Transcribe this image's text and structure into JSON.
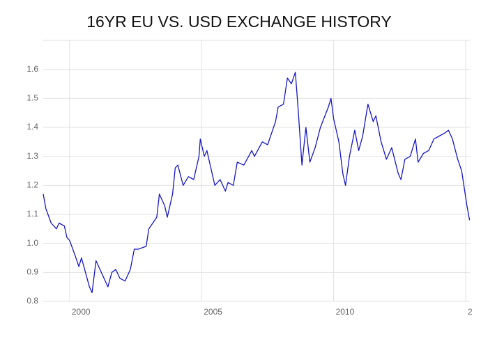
{
  "chart_data": {
    "type": "line",
    "title": "16YR EU VS. USD EXCHANGE HISTORY",
    "x": [
      1999.0,
      1999.1,
      1999.3,
      1999.5,
      1999.6,
      1999.8,
      1999.9,
      2000.0,
      2000.2,
      2000.35,
      2000.45,
      2000.6,
      2000.75,
      2000.85,
      2001.0,
      2001.1,
      2001.3,
      2001.45,
      2001.6,
      2001.75,
      2001.9,
      2002.1,
      2002.3,
      2002.45,
      2002.6,
      2002.9,
      2003.0,
      2003.3,
      2003.4,
      2003.6,
      2003.7,
      2003.9,
      2004.0,
      2004.1,
      2004.3,
      2004.5,
      2004.7,
      2004.9,
      2004.95,
      2005.1,
      2005.2,
      2005.4,
      2005.5,
      2005.7,
      2005.9,
      2006.0,
      2006.2,
      2006.35,
      2006.6,
      2006.9,
      2007.0,
      2007.3,
      2007.5,
      2007.8,
      2007.9,
      2008.1,
      2008.25,
      2008.4,
      2008.55,
      2008.65,
      2008.8,
      2008.95,
      2009.1,
      2009.3,
      2009.5,
      2009.8,
      2009.9,
      2010.0,
      2010.2,
      2010.35,
      2010.45,
      2010.6,
      2010.8,
      2010.95,
      2011.1,
      2011.3,
      2011.5,
      2011.6,
      2011.8,
      2012.0,
      2012.2,
      2012.45,
      2012.55,
      2012.7,
      2012.9,
      2013.1,
      2013.2,
      2013.4,
      2013.6,
      2013.8,
      2014.0,
      2014.2,
      2014.35,
      2014.5,
      2014.7,
      2014.85,
      2015.0,
      2015.05,
      2015.15
    ],
    "series": [
      {
        "color": "#1515c8",
        "values": [
          1.17,
          1.12,
          1.07,
          1.05,
          1.07,
          1.06,
          1.02,
          1.01,
          0.96,
          0.92,
          0.95,
          0.9,
          0.85,
          0.83,
          0.94,
          0.92,
          0.88,
          0.85,
          0.9,
          0.91,
          0.88,
          0.87,
          0.91,
          0.98,
          0.98,
          0.99,
          1.05,
          1.09,
          1.17,
          1.13,
          1.09,
          1.17,
          1.26,
          1.27,
          1.2,
          1.23,
          1.22,
          1.3,
          1.36,
          1.3,
          1.32,
          1.24,
          1.2,
          1.22,
          1.18,
          1.21,
          1.2,
          1.28,
          1.27,
          1.32,
          1.3,
          1.35,
          1.34,
          1.42,
          1.47,
          1.48,
          1.57,
          1.55,
          1.59,
          1.47,
          1.27,
          1.4,
          1.28,
          1.33,
          1.4,
          1.47,
          1.5,
          1.43,
          1.35,
          1.24,
          1.2,
          1.3,
          1.39,
          1.32,
          1.37,
          1.48,
          1.42,
          1.44,
          1.35,
          1.29,
          1.33,
          1.24,
          1.22,
          1.29,
          1.3,
          1.36,
          1.28,
          1.31,
          1.32,
          1.36,
          1.37,
          1.38,
          1.39,
          1.36,
          1.29,
          1.25,
          1.16,
          1.13,
          1.08
        ]
      }
    ],
    "xlim": [
      1999,
      2015.16
    ],
    "ylim": [
      0.8,
      1.7
    ],
    "xticks": [
      2000,
      2005,
      2010,
      {
        "value": 2015,
        "label": "2"
      }
    ],
    "yticks": [
      0.8,
      {
        "value": 0.9,
        "label": "0.9"
      },
      {
        "value": 1.0,
        "label": "1.0"
      },
      1.1,
      1.2,
      1.3,
      1.4,
      1.5,
      1.6
    ],
    "grid": true
  }
}
